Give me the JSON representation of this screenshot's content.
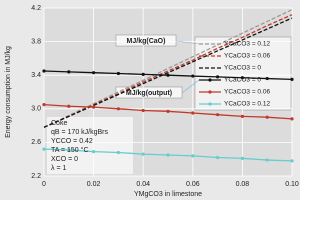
{
  "chart_data": {
    "type": "line",
    "x_label": "YMgCO3 in limestone",
    "y_label": "Energy consumption in MJ/kg",
    "x": [
      0,
      0.01,
      0.02,
      0.03,
      0.04,
      0.05,
      0.06,
      0.07,
      0.08,
      0.09,
      0.1
    ],
    "xlim": [
      0,
      0.1
    ],
    "xticks": [
      0,
      0.02,
      0.04,
      0.06,
      0.08,
      {
        "value": 0.1,
        "label": "0.10"
      }
    ],
    "ylim": [
      2.2,
      4.2
    ],
    "yticks": [
      2.2,
      2.6,
      {
        "value": 3.0,
        "label": "3.0"
      },
      3.4,
      3.8,
      4.2
    ],
    "grid": true,
    "series": [
      {
        "name": "YCaCO3 = 0.12",
        "color": "#9a9a9a",
        "dashed": true,
        "markers": false,
        "values": [
          2.78,
          2.92,
          3.06,
          3.2,
          3.34,
          3.48,
          3.62,
          3.76,
          3.9,
          4.04,
          4.18
        ]
      },
      {
        "name": "YCaCO3 = 0.06",
        "color": "#c0392b",
        "dashed": true,
        "markers": false,
        "values": [
          2.78,
          2.91,
          3.05,
          3.18,
          3.32,
          3.45,
          3.58,
          3.72,
          3.85,
          3.99,
          4.12
        ]
      },
      {
        "name": "YCaCO3 = 0",
        "color": "#111111",
        "dashed": true,
        "markers": false,
        "values": [
          2.78,
          2.91,
          3.04,
          3.17,
          3.3,
          3.43,
          3.56,
          3.69,
          3.82,
          3.95,
          4.08
        ]
      },
      {
        "name": "YCaCO3 = 0",
        "color": "#111111",
        "dashed": false,
        "markers": true,
        "values": [
          3.45,
          3.44,
          3.43,
          3.42,
          3.41,
          3.4,
          3.39,
          3.38,
          3.37,
          3.36,
          3.35
        ]
      },
      {
        "name": "YCaCO3 = 0.06",
        "color": "#c0392b",
        "dashed": false,
        "markers": true,
        "values": [
          3.05,
          3.03,
          3.02,
          3.0,
          2.98,
          2.97,
          2.95,
          2.93,
          2.91,
          2.9,
          2.88
        ]
      },
      {
        "name": "YCaCO3 = 0.12",
        "color": "#66cccc",
        "dashed": false,
        "markers": true,
        "values": [
          2.52,
          2.51,
          2.49,
          2.48,
          2.46,
          2.45,
          2.44,
          2.42,
          2.41,
          2.39,
          2.38
        ]
      }
    ],
    "annotations": [
      "MJ/kg(CaO)",
      "MJ/kg(output)"
    ],
    "parameters": [
      "Coke",
      "qB = 170 kJ/kgBrs",
      "YCCO = 0.42",
      "TA = 150 °C",
      "XCO = 0",
      "λ = 1"
    ]
  }
}
